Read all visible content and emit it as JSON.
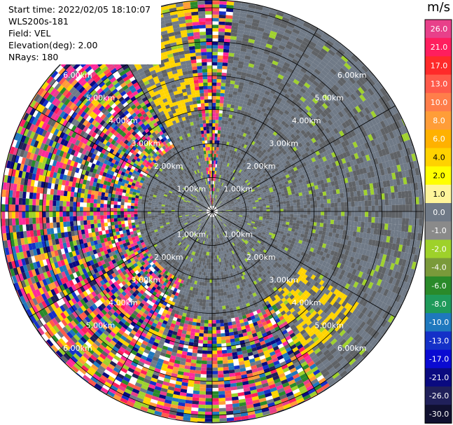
{
  "header": {
    "start_time": "Start time: 2022/02/05 18:10:07",
    "site": "WLS200s-181",
    "field": "Field: VEL",
    "elevation": "Elevation(deg): 2.00",
    "nrays": "NRays: 180"
  },
  "chart_data": {
    "type": "heatmap",
    "projection": "polar-ppi",
    "nrays": 180,
    "elevation_deg": 2.0,
    "range_rings_km": [
      1,
      2,
      3,
      4,
      5,
      6
    ],
    "ring_labels": [
      "1.00km",
      "2.00km",
      "3.00km",
      "4.00km",
      "5.00km",
      "6.00km"
    ],
    "spokes_deg": [
      0,
      30,
      60,
      90,
      120,
      150,
      180,
      210,
      240,
      270,
      300,
      330
    ],
    "colorbar": {
      "unit": "m/s",
      "ticks": [
        "26.0",
        "21.0",
        "17.0",
        "13.0",
        "10.0",
        "8.0",
        "6.0",
        "4.0",
        "2.0",
        "1.0",
        "0.0",
        "-1.0",
        "-2.0",
        "-4.0",
        "-6.0",
        "-8.0",
        "-10.0",
        "-13.0",
        "-17.0",
        "-21.0",
        "-26.0",
        "-30.0"
      ],
      "colors": [
        "#e8408a",
        "#ff1e5e",
        "#ff2a2a",
        "#ff5a4a",
        "#ff7e4a",
        "#ff9d38",
        "#ffb100",
        "#ffd200",
        "#ffff00",
        "#fff59a",
        "#707a87",
        "#8a8a8a",
        "#9ed12a",
        "#7a9a3a",
        "#2a8a2a",
        "#1f9a5a",
        "#1e78be",
        "#1430c8",
        "#0a0ad2",
        "#0a0a80",
        "#20205a",
        "#101030"
      ]
    }
  }
}
